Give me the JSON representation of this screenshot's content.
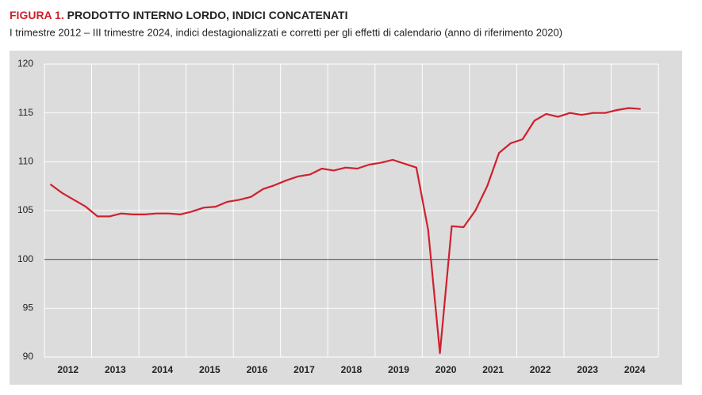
{
  "chart_data": {
    "type": "line",
    "figure_label": "FIGURA 1.",
    "title": "PRODOTTO INTERNO LORDO, INDICI CONCATENATI",
    "subtitle": "I trimestre 2012 – III trimestre 2024, indici destagionalizzati e corretti per gli effetti di calendario (anno di riferimento 2020)",
    "categories": [
      "2012",
      null,
      null,
      null,
      "2013",
      null,
      null,
      null,
      "2014",
      null,
      null,
      null,
      "2015",
      null,
      null,
      null,
      "2016",
      null,
      null,
      null,
      "2017",
      null,
      null,
      null,
      "2018",
      null,
      null,
      null,
      "2019",
      null,
      null,
      null,
      "2020",
      null,
      null,
      null,
      "2021",
      null,
      null,
      null,
      "2022",
      null,
      null,
      null,
      "2023",
      null,
      null,
      null,
      "2024",
      null,
      null
    ],
    "series": [
      {
        "color": "#d0202e",
        "values": [
          107.7,
          106.8,
          106.1,
          105.4,
          104.4,
          104.4,
          104.7,
          104.6,
          104.6,
          104.7,
          104.7,
          104.6,
          104.9,
          105.3,
          105.4,
          105.9,
          106.1,
          106.4,
          107.2,
          107.6,
          108.1,
          108.5,
          108.7,
          109.3,
          109.1,
          109.4,
          109.3,
          109.7,
          109.9,
          110.2,
          109.8,
          109.4,
          103.0,
          90.4,
          103.4,
          103.3,
          105.0,
          107.5,
          110.9,
          111.9,
          112.3,
          114.2,
          114.9,
          114.6,
          115.0,
          114.8,
          115.0,
          115.0,
          115.3,
          115.5,
          115.4
        ]
      }
    ],
    "ylim": [
      90,
      120
    ],
    "yticks": [
      90,
      95,
      100,
      105,
      110,
      115,
      120
    ],
    "reference_line": 100,
    "grid": true
  }
}
